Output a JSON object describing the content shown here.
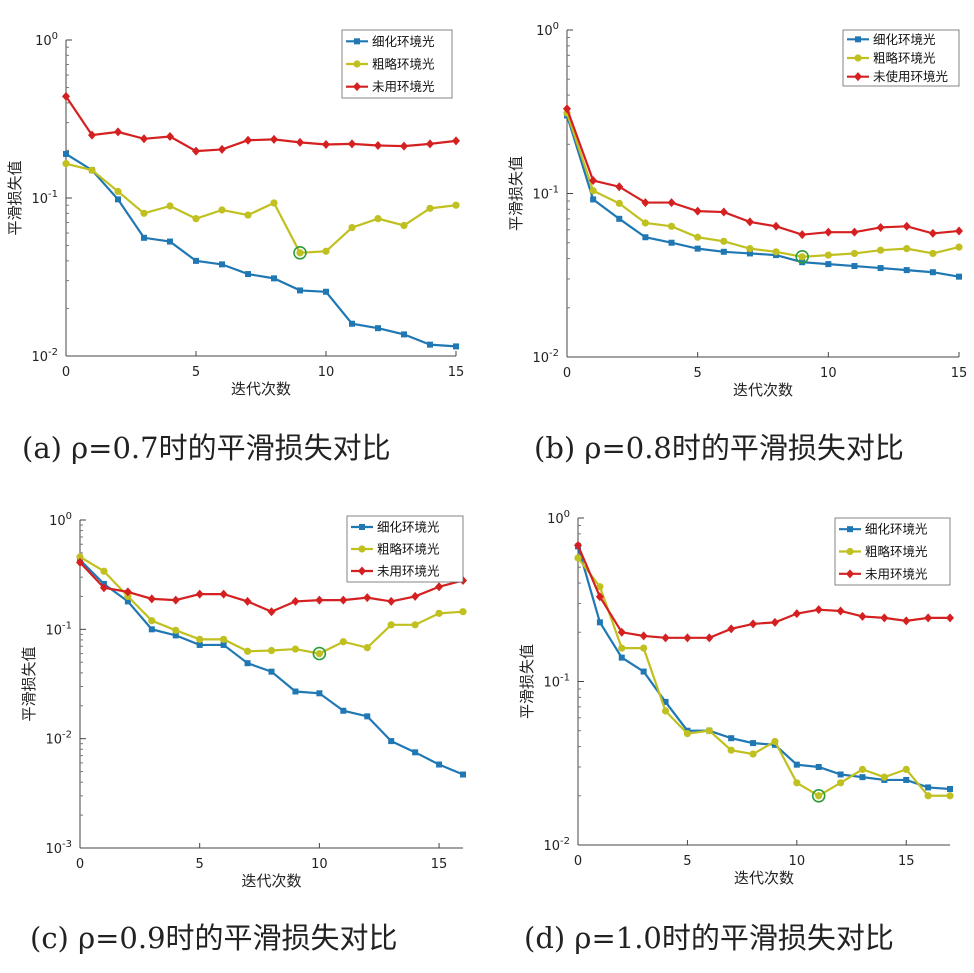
{
  "chart_data": [
    {
      "type": "line",
      "caption": "(a)  ρ=0.7时的平滑损失对比",
      "xlabel": "迭代次数",
      "ylabel": "平滑损失值",
      "yscale": "log",
      "xlim": [
        0,
        15
      ],
      "ylim": [
        0.01,
        1
      ],
      "xticks": [
        "0",
        "5",
        "10",
        "15"
      ],
      "yticks": [
        {
          "base": "10",
          "exp": "0"
        },
        {
          "base": "10",
          "exp": "-1"
        },
        {
          "base": "10",
          "exp": "-2"
        }
      ],
      "x": [
        0,
        1,
        2,
        3,
        4,
        5,
        6,
        7,
        8,
        9,
        10,
        11,
        12,
        13,
        14,
        15
      ],
      "series": [
        {
          "name": "细化环境光",
          "color": "#1f77b4",
          "marker": "square",
          "values": [
            0.19,
            0.15,
            0.098,
            0.056,
            0.053,
            0.04,
            0.038,
            0.033,
            0.031,
            0.026,
            0.0255,
            0.016,
            0.015,
            0.0137,
            0.0118,
            0.0115
          ]
        },
        {
          "name": "粗略环境光",
          "color": "#c0c020",
          "marker": "circle",
          "values": [
            0.165,
            0.15,
            0.11,
            0.08,
            0.089,
            0.074,
            0.084,
            0.078,
            0.093,
            0.045,
            0.046,
            0.065,
            0.074,
            0.067,
            0.086,
            0.09
          ]
        },
        {
          "name": "未用环境光",
          "color": "#d42020",
          "marker": "diamond",
          "values": [
            0.44,
            0.25,
            0.262,
            0.237,
            0.245,
            0.198,
            0.203,
            0.232,
            0.235,
            0.225,
            0.218,
            0.22,
            0.215,
            0.213,
            0.22,
            0.23
          ]
        }
      ],
      "highlight": {
        "x": 9,
        "y": 0.045
      }
    },
    {
      "type": "line",
      "caption": "(b)  ρ=0.8时的平滑损失对比",
      "xlabel": "迭代次数",
      "ylabel": "平滑损失值",
      "yscale": "log",
      "xlim": [
        0,
        15
      ],
      "ylim": [
        0.01,
        1
      ],
      "xticks": [
        "0",
        "5",
        "10",
        "15"
      ],
      "yticks": [
        {
          "base": "10",
          "exp": "0"
        },
        {
          "base": "10",
          "exp": "-1"
        },
        {
          "base": "10",
          "exp": "-2"
        }
      ],
      "x": [
        0,
        1,
        2,
        3,
        4,
        5,
        6,
        7,
        8,
        9,
        10,
        11,
        12,
        13,
        14,
        15
      ],
      "series": [
        {
          "name": "细化环境光",
          "color": "#1f77b4",
          "marker": "square",
          "values": [
            0.3,
            0.092,
            0.07,
            0.054,
            0.05,
            0.046,
            0.044,
            0.043,
            0.042,
            0.038,
            0.037,
            0.036,
            0.035,
            0.034,
            0.033,
            0.031
          ]
        },
        {
          "name": "粗略环境光",
          "color": "#c0c020",
          "marker": "circle",
          "values": [
            0.31,
            0.104,
            0.087,
            0.066,
            0.063,
            0.054,
            0.051,
            0.046,
            0.044,
            0.041,
            0.042,
            0.043,
            0.045,
            0.046,
            0.043,
            0.047
          ]
        },
        {
          "name": "未使用环境光",
          "color": "#d42020",
          "marker": "diamond",
          "values": [
            0.33,
            0.12,
            0.11,
            0.088,
            0.088,
            0.078,
            0.077,
            0.067,
            0.063,
            0.056,
            0.058,
            0.058,
            0.062,
            0.063,
            0.057,
            0.059
          ]
        }
      ],
      "highlight": {
        "x": 9,
        "y": 0.041
      }
    },
    {
      "type": "line",
      "caption": "(c)  ρ=0.9时的平滑损失对比",
      "xlabel": "迭代次数",
      "ylabel": "平滑损失值",
      "yscale": "log",
      "xlim": [
        0,
        16
      ],
      "ylim": [
        0.001,
        1
      ],
      "xticks": [
        "0",
        "5",
        "10",
        "15"
      ],
      "yticks": [
        {
          "base": "10",
          "exp": "0"
        },
        {
          "base": "10",
          "exp": "-1"
        },
        {
          "base": "10",
          "exp": "-2"
        },
        {
          "base": "10",
          "exp": "-3"
        }
      ],
      "x": [
        0,
        1,
        2,
        3,
        4,
        5,
        6,
        7,
        8,
        9,
        10,
        11,
        12,
        13,
        14,
        15,
        16
      ],
      "series": [
        {
          "name": "细化环境光",
          "color": "#1f77b4",
          "marker": "square",
          "values": [
            0.43,
            0.26,
            0.18,
            0.1,
            0.088,
            0.072,
            0.072,
            0.049,
            0.041,
            0.027,
            0.026,
            0.018,
            0.016,
            0.0095,
            0.0075,
            0.0058,
            0.0047
          ]
        },
        {
          "name": "粗略环境光",
          "color": "#c0c020",
          "marker": "circle",
          "values": [
            0.46,
            0.34,
            0.2,
            0.12,
            0.098,
            0.081,
            0.081,
            0.063,
            0.064,
            0.066,
            0.06,
            0.077,
            0.068,
            0.11,
            0.11,
            0.14,
            0.145
          ]
        },
        {
          "name": "未用环境光",
          "color": "#d42020",
          "marker": "diamond",
          "values": [
            0.41,
            0.24,
            0.22,
            0.19,
            0.185,
            0.21,
            0.21,
            0.18,
            0.145,
            0.18,
            0.185,
            0.185,
            0.195,
            0.18,
            0.2,
            0.245,
            0.28
          ]
        }
      ],
      "highlight": {
        "x": 10,
        "y": 0.06
      }
    },
    {
      "type": "line",
      "caption": "(d)  ρ=1.0时的平滑损失对比",
      "xlabel": "迭代次数",
      "ylabel": "平滑损失值",
      "yscale": "log",
      "xlim": [
        0,
        17
      ],
      "ylim": [
        0.01,
        1
      ],
      "xticks": [
        "0",
        "5",
        "10",
        "15"
      ],
      "yticks": [
        {
          "base": "10",
          "exp": "0"
        },
        {
          "base": "10",
          "exp": "-1"
        },
        {
          "base": "10",
          "exp": "-2"
        }
      ],
      "x": [
        0,
        1,
        2,
        3,
        4,
        5,
        6,
        7,
        8,
        9,
        10,
        11,
        12,
        13,
        14,
        15,
        16,
        17
      ],
      "series": [
        {
          "name": "细化环境光",
          "color": "#1f77b4",
          "marker": "square",
          "values": [
            0.67,
            0.23,
            0.14,
            0.115,
            0.075,
            0.05,
            0.05,
            0.045,
            0.042,
            0.041,
            0.031,
            0.03,
            0.027,
            0.026,
            0.025,
            0.025,
            0.0225,
            0.022
          ]
        },
        {
          "name": "粗略环境光",
          "color": "#c0c020",
          "marker": "circle",
          "values": [
            0.57,
            0.38,
            0.16,
            0.16,
            0.066,
            0.048,
            0.05,
            0.038,
            0.036,
            0.043,
            0.024,
            0.02,
            0.024,
            0.029,
            0.026,
            0.029,
            0.02,
            0.02
          ]
        },
        {
          "name": "未用环境光",
          "color": "#d42020",
          "marker": "diamond",
          "values": [
            0.68,
            0.33,
            0.2,
            0.19,
            0.185,
            0.185,
            0.185,
            0.21,
            0.225,
            0.23,
            0.26,
            0.275,
            0.27,
            0.25,
            0.245,
            0.235,
            0.245,
            0.245
          ]
        }
      ],
      "highlight": {
        "x": 11,
        "y": 0.02
      }
    }
  ]
}
